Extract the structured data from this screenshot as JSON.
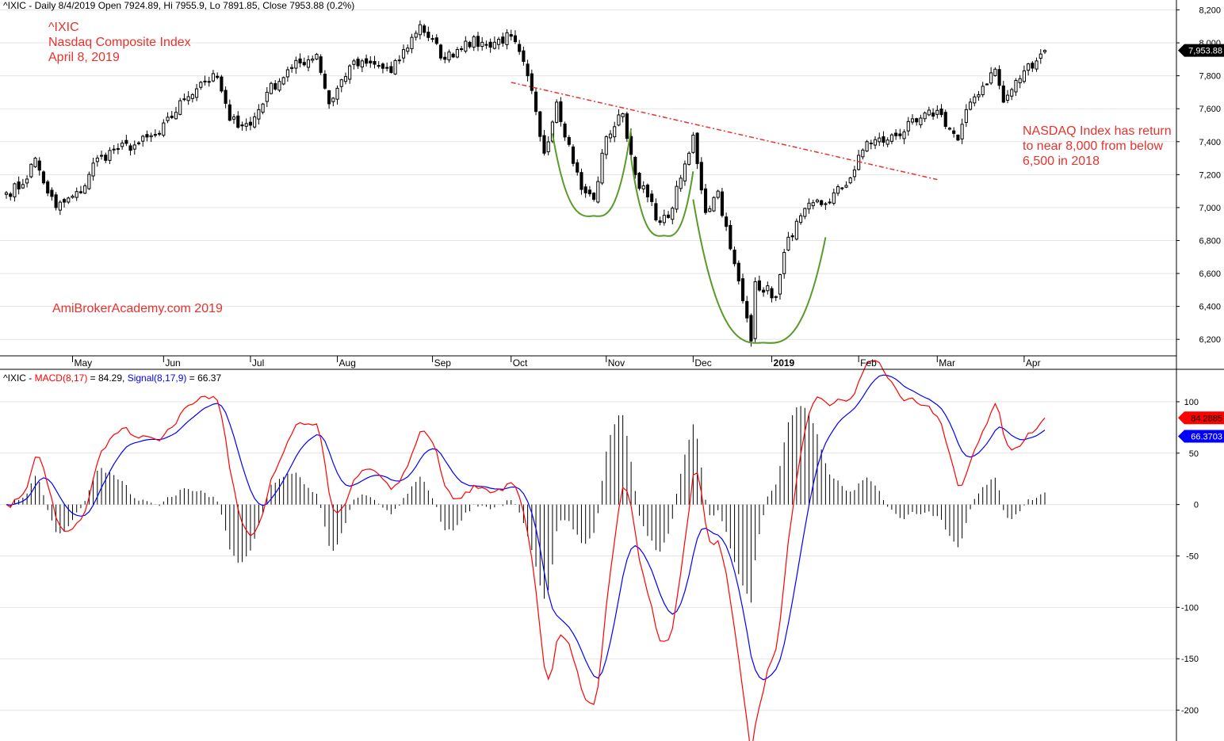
{
  "header": {
    "price": {
      "symbol": "^IXIC",
      "sep": " - ",
      "info": "Daily 8/4/2019 Open 7924.89, Hi 7955.9, Lo 7891.85, Close 7953.88 (0.2%)"
    },
    "indicator": {
      "symbol": "^IXIC",
      "sep": " - ",
      "macd_label": "MACD(8,17)",
      "macd_value": " = 84.29, ",
      "signal_label": "Signal(8,17,9)",
      "signal_value": " = 66.37"
    }
  },
  "annotations": {
    "title_lines": [
      "^IXIC",
      "Nasdaq Composite Index",
      "April 8, 2019"
    ],
    "watermark": "AmiBrokerAcademy.com  2019",
    "note_lines": [
      "NASDAQ Index has return",
      "to near 8,000 from below",
      "6,500 in 2018"
    ]
  },
  "colors": {
    "annotation": "#e8322e",
    "macd": "#ff0000",
    "signal": "#0000ff",
    "trendline": "#e8322e",
    "cup": "#5a9a2a",
    "candle": "#000000"
  },
  "chart_data": [
    {
      "type": "candlestick",
      "title": "^IXIC Nasdaq Composite Index",
      "ylim": [
        6100,
        8260
      ],
      "yticks": [
        6200,
        6400,
        6600,
        6800,
        7000,
        7200,
        7400,
        7600,
        7800,
        8000,
        8200
      ],
      "ytick_labels": [
        "6,200",
        "6,400",
        "6,600",
        "6,800",
        "7,000",
        "7,200",
        "7,400",
        "7,600",
        "7,800",
        "8,000",
        "8,200"
      ],
      "x_labels": [
        "May",
        "Jun",
        "Jul",
        "Aug",
        "Sep",
        "Oct",
        "Nov",
        "Dec",
        "2019",
        "Feb",
        "Mar",
        "Apr"
      ],
      "x_label_positions": [
        "2018-05-01",
        "2018-06-01",
        "2018-07-02",
        "2018-08-01",
        "2018-09-04",
        "2018-10-01",
        "2018-11-01",
        "2018-12-03",
        "2019-01-02",
        "2019-02-01",
        "2019-03-01",
        "2019-04-01"
      ],
      "date_range": [
        "2018-04-09",
        "2019-04-08"
      ],
      "last_close": 7953.88,
      "last_close_label": "7,953.88",
      "close_anchors": [
        [
          "2018-04-09",
          7090
        ],
        [
          "2018-04-13",
          7140
        ],
        [
          "2018-04-18",
          7300
        ],
        [
          "2018-04-20",
          7150
        ],
        [
          "2018-04-25",
          7000
        ],
        [
          "2018-05-03",
          7090
        ],
        [
          "2018-05-08",
          7270
        ],
        [
          "2018-05-15",
          7350
        ],
        [
          "2018-05-22",
          7380
        ],
        [
          "2018-05-31",
          7450
        ],
        [
          "2018-06-08",
          7660
        ],
        [
          "2018-06-14",
          7760
        ],
        [
          "2018-06-20",
          7790
        ],
        [
          "2018-06-25",
          7530
        ],
        [
          "2018-07-02",
          7500
        ],
        [
          "2018-07-09",
          7700
        ],
        [
          "2018-07-17",
          7850
        ],
        [
          "2018-07-25",
          7930
        ],
        [
          "2018-07-30",
          7630
        ],
        [
          "2018-08-06",
          7860
        ],
        [
          "2018-08-14",
          7870
        ],
        [
          "2018-08-20",
          7820
        ],
        [
          "2018-08-29",
          8110
        ],
        [
          "2018-09-07",
          7900
        ],
        [
          "2018-09-14",
          8010
        ],
        [
          "2018-09-21",
          7990
        ],
        [
          "2018-10-01",
          8040
        ],
        [
          "2018-10-05",
          7800
        ],
        [
          "2018-10-11",
          7330
        ],
        [
          "2018-10-16",
          7640
        ],
        [
          "2018-10-24",
          7110
        ],
        [
          "2018-10-29",
          7050
        ],
        [
          "2018-11-01",
          7430
        ],
        [
          "2018-11-07",
          7570
        ],
        [
          "2018-11-12",
          7200
        ],
        [
          "2018-11-20",
          6910
        ],
        [
          "2018-11-23",
          6940
        ],
        [
          "2018-11-30",
          7330
        ],
        [
          "2018-12-03",
          7440
        ],
        [
          "2018-12-07",
          6970
        ],
        [
          "2018-12-12",
          7100
        ],
        [
          "2018-12-17",
          6750
        ],
        [
          "2018-12-21",
          6330
        ],
        [
          "2018-12-24",
          6190
        ],
        [
          "2018-12-26",
          6550
        ],
        [
          "2019-01-03",
          6460
        ],
        [
          "2019-01-08",
          6820
        ],
        [
          "2019-01-16",
          7030
        ],
        [
          "2019-01-22",
          7020
        ],
        [
          "2019-01-30",
          7180
        ],
        [
          "2019-02-05",
          7400
        ],
        [
          "2019-02-12",
          7410
        ],
        [
          "2019-02-22",
          7520
        ],
        [
          "2019-03-01",
          7590
        ],
        [
          "2019-03-08",
          7410
        ],
        [
          "2019-03-13",
          7640
        ],
        [
          "2019-03-21",
          7840
        ],
        [
          "2019-03-25",
          7640
        ],
        [
          "2019-04-01",
          7830
        ],
        [
          "2019-04-08",
          7953.88
        ]
      ],
      "annotation_lines": {
        "trendline": [
          [
            "2018-10-01",
            7760
          ],
          [
            "2019-03-01",
            7170
          ]
        ],
        "cups": [
          {
            "from": [
              "2018-10-15",
              7450
            ],
            "bottom": [
              "2018-10-29",
              6950
            ],
            "to": [
              "2018-11-09",
              7480
            ]
          },
          {
            "from": [
              "2018-11-09",
              7300
            ],
            "bottom": [
              "2018-11-21",
              6830
            ],
            "to": [
              "2018-12-03",
              7220
            ]
          },
          {
            "from": [
              "2018-12-03",
              7050
            ],
            "bottom": [
              "2018-12-28",
              6180
            ],
            "to": [
              "2019-01-22",
              6820
            ]
          }
        ]
      }
    },
    {
      "type": "line",
      "title": "MACD(8,17), Signal(8,17,9)",
      "ylim": [
        -230,
        130
      ],
      "yticks": [
        -200,
        -150,
        -100,
        -50,
        0,
        50,
        100
      ],
      "ytick_labels": [
        "-200",
        "-150",
        "-100",
        "-50",
        "0",
        "50",
        "100"
      ],
      "series": [
        {
          "name": "MACD(8,17)",
          "last": 84.29,
          "last_label": "84.2885"
        },
        {
          "name": "Signal(8,17,9)",
          "last": 66.37,
          "last_label": "66.3703"
        }
      ],
      "histogram": "MACD - Signal"
    }
  ]
}
